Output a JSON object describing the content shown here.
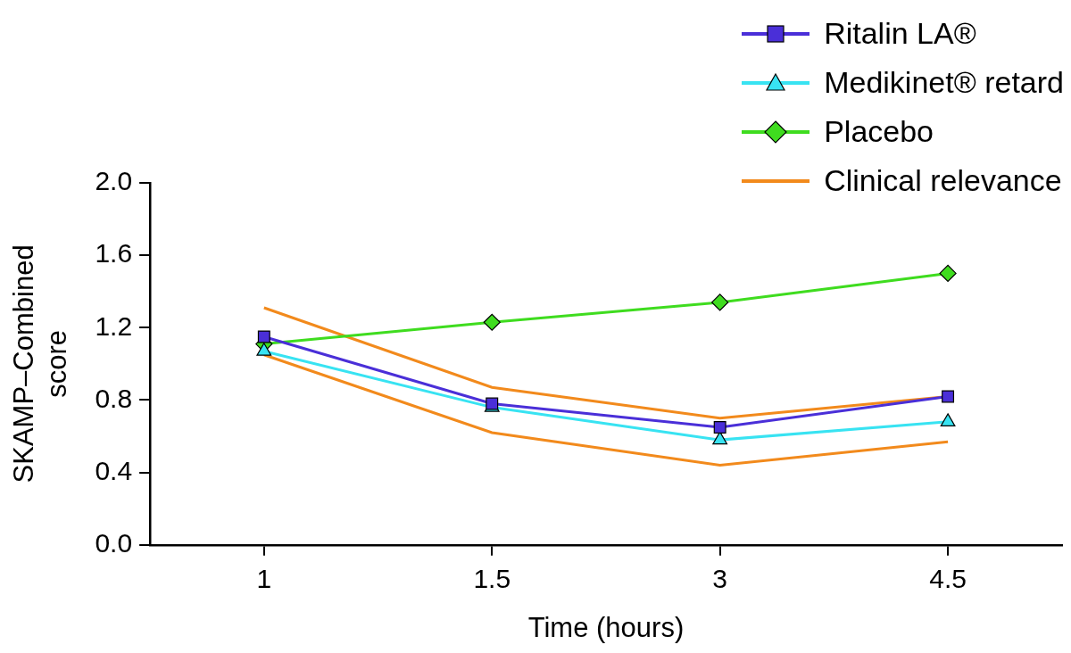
{
  "chart_data": {
    "type": "line",
    "x_label": "Time (hours)",
    "y_label": [
      "SKAMP–Combined",
      "score"
    ],
    "categories": [
      "1",
      "1.5",
      "3",
      "4.5"
    ],
    "ylim": [
      0,
      2
    ],
    "yticks": [
      {
        "value": 0,
        "label": "0.0"
      },
      0.4,
      0.8,
      1.2,
      1.6,
      {
        "value": 2,
        "label": "2.0"
      }
    ],
    "grid": false,
    "legend": "top right",
    "series": [
      {
        "name": "Ritalin LA®",
        "color": "#4a2fd8",
        "marker": "square",
        "values": [
          1.15,
          0.78,
          0.65,
          0.82
        ]
      },
      {
        "name": "Medikinet® retard",
        "color": "#38e3f2",
        "marker": "triangle",
        "values": [
          1.07,
          0.76,
          0.58,
          0.68
        ]
      },
      {
        "name": "Placebo",
        "color": "#3fdc1f",
        "marker": "diamond",
        "values": [
          1.11,
          1.23,
          1.34,
          1.5
        ]
      },
      {
        "name": "Clinical relevance",
        "color": "#f28a1c",
        "marker": "none",
        "upper": [
          1.31,
          0.87,
          0.7,
          0.82
        ],
        "lower": [
          1.05,
          0.62,
          0.44,
          0.57
        ]
      }
    ]
  }
}
